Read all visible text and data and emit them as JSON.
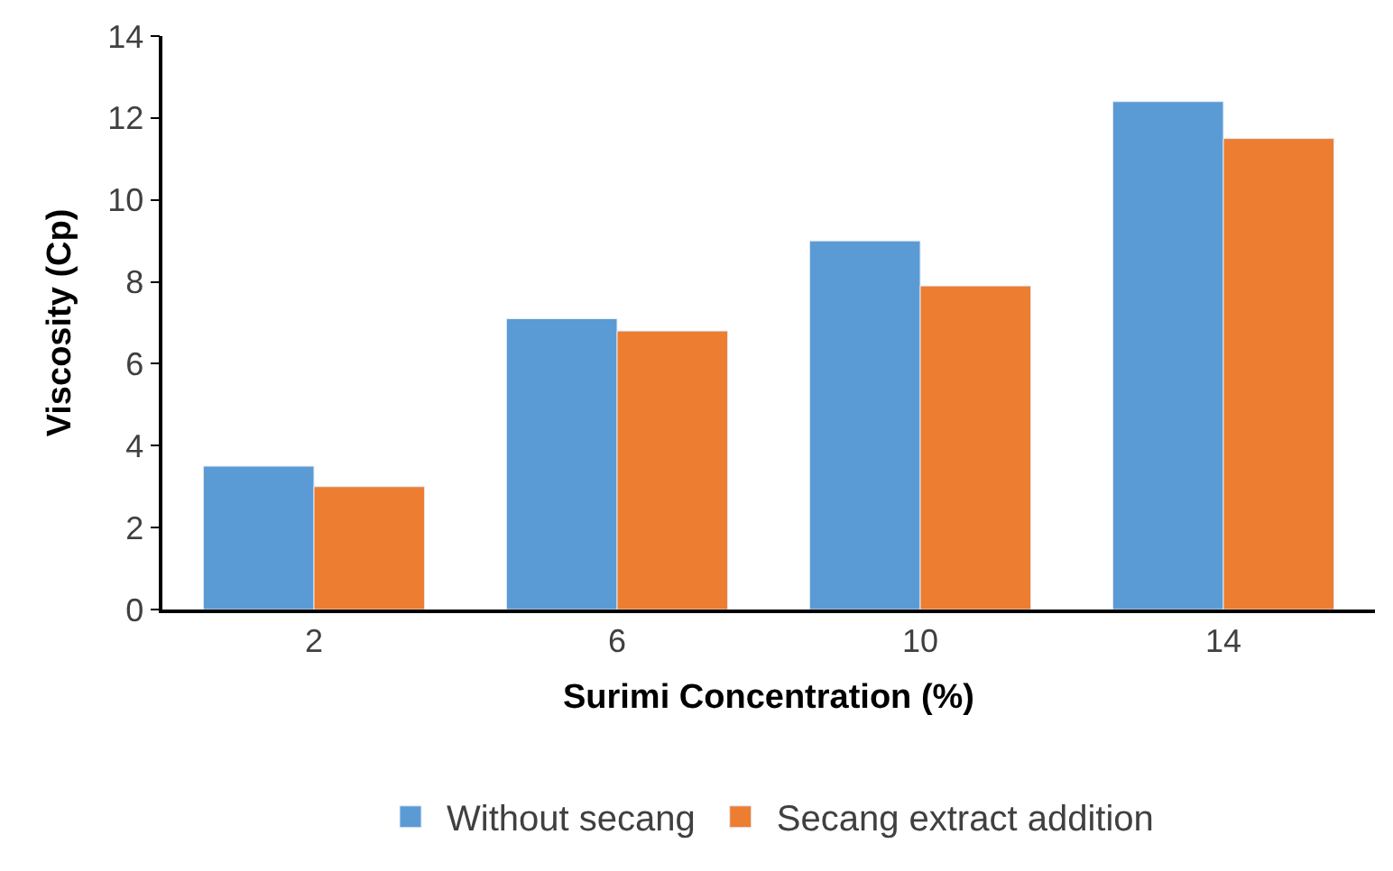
{
  "chart_data": {
    "type": "bar",
    "xlabel": "Surimi Concentration (%)",
    "ylabel": "Viscosity (Cp)",
    "categories": [
      "2",
      "6",
      "10",
      "14"
    ],
    "series": [
      {
        "name": "Without secang",
        "color": "#5b9bd5",
        "values": [
          3.5,
          7.1,
          9.0,
          12.4
        ]
      },
      {
        "name": "Secang extract addition",
        "color": "#ed7d31",
        "values": [
          3.0,
          6.8,
          7.9,
          11.5
        ]
      }
    ],
    "ylim": [
      0,
      14
    ],
    "yticks": [
      0,
      2,
      4,
      6,
      8,
      10,
      12,
      14
    ],
    "legend": "bottom"
  }
}
